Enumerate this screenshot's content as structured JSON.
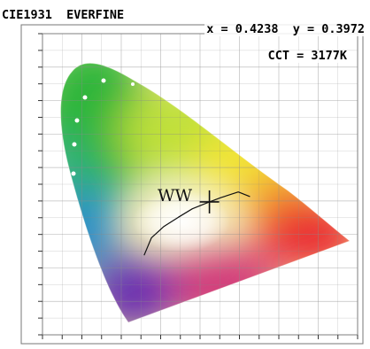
{
  "header": {
    "title": "CIE1931  EVERFINE",
    "coords": "x = 0.4238  y = 0.3972",
    "cct": "CCT = 3177K"
  },
  "colors": {
    "background": "#ffffff",
    "grid": "#8a8a8a",
    "text": "#000000",
    "marker": "#111111"
  },
  "chart_data": {
    "type": "scatter",
    "title": "CIE1931  EVERFINE",
    "subtitle": "",
    "xlabel": "",
    "ylabel": "",
    "xlim": [
      0,
      0.8
    ],
    "ylim": [
      0,
      0.9
    ],
    "grid": true,
    "series": [
      {
        "name": "WW",
        "x": [
          0.4238
        ],
        "y": [
          0.3972
        ]
      }
    ],
    "annotations": [
      {
        "text": "WW",
        "x": 0.4238,
        "y": 0.3972
      },
      {
        "text": "CCT = 3177K"
      }
    ],
    "planckian_locus": {
      "x": [
        0.258,
        0.2764,
        0.308,
        0.3451,
        0.3805,
        0.4238,
        0.453,
        0.497,
        0.5267
      ],
      "y": [
        0.2377,
        0.2896,
        0.3238,
        0.3516,
        0.3768,
        0.3972,
        0.41,
        0.427,
        0.4133
      ]
    }
  }
}
